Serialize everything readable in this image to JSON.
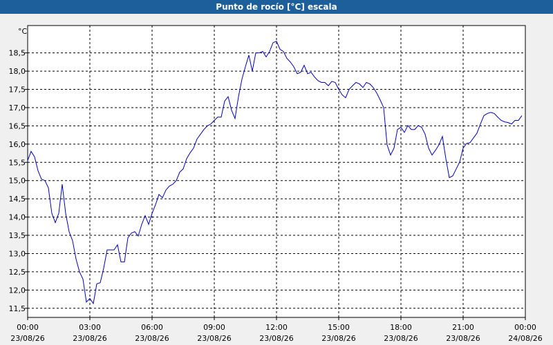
{
  "chart_data": {
    "type": "line",
    "title": "Punto de rocío [°C] escala",
    "y_unit": "°C",
    "xlim": [
      0,
      1440
    ],
    "ylim": [
      11.25,
      19.25
    ],
    "grid": true,
    "color": "#0000c0",
    "xticks": [
      {
        "value": 0,
        "label": "00:00"
      },
      {
        "value": 180,
        "label": "03:00"
      },
      {
        "value": 360,
        "label": "06:00"
      },
      {
        "value": 540,
        "label": "09:00"
      },
      {
        "value": 720,
        "label": "12:00"
      },
      {
        "value": 900,
        "label": "15:00"
      },
      {
        "value": 1080,
        "label": "18:00"
      },
      {
        "value": 1260,
        "label": "21:00"
      },
      {
        "value": 1440,
        "label": "00:00"
      }
    ],
    "xtick_dates": [
      "23/08/26",
      "23/08/26",
      "23/08/26",
      "23/08/26",
      "23/08/26",
      "23/08/26",
      "23/08/26",
      "23/08/26",
      "24/08/26"
    ],
    "yticks": [
      {
        "value": 11.5,
        "label": "11,5"
      },
      {
        "value": 12,
        "label": "12,0"
      },
      {
        "value": 12.5,
        "label": "12,5"
      },
      {
        "value": 13,
        "label": "13,0"
      },
      {
        "value": 13.5,
        "label": "13,5"
      },
      {
        "value": 14,
        "label": "14,0"
      },
      {
        "value": 14.5,
        "label": "14,5"
      },
      {
        "value": 15,
        "label": "15,0"
      },
      {
        "value": 15.5,
        "label": "15,5"
      },
      {
        "value": 16,
        "label": "16,0"
      },
      {
        "value": 16.5,
        "label": "16,5"
      },
      {
        "value": 17,
        "label": "17,0"
      },
      {
        "value": 17.5,
        "label": "17,5"
      },
      {
        "value": 18,
        "label": "18,0"
      },
      {
        "value": 18.5,
        "label": "18,5"
      }
    ],
    "x": [
      0,
      10,
      20,
      30,
      40,
      50,
      60,
      70,
      80,
      90,
      100,
      110,
      120,
      130,
      140,
      150,
      160,
      170,
      180,
      190,
      200,
      210,
      220,
      230,
      240,
      250,
      260,
      270,
      280,
      290,
      300,
      310,
      320,
      330,
      340,
      350,
      360,
      370,
      380,
      390,
      400,
      410,
      420,
      430,
      440,
      450,
      460,
      470,
      480,
      490,
      500,
      510,
      520,
      530,
      540,
      550,
      560,
      570,
      580,
      590,
      600,
      610,
      620,
      630,
      640,
      650,
      660,
      670,
      680,
      690,
      700,
      710,
      720,
      730,
      740,
      750,
      760,
      770,
      780,
      790,
      800,
      810,
      820,
      830,
      840,
      850,
      860,
      870,
      880,
      890,
      900,
      910,
      920,
      930,
      940,
      950,
      960,
      970,
      980,
      990,
      1000,
      1010,
      1020,
      1030,
      1040,
      1050,
      1060,
      1070,
      1080,
      1090,
      1100,
      1110,
      1120,
      1130,
      1140,
      1150,
      1160,
      1170,
      1180,
      1190,
      1200,
      1210,
      1220,
      1230,
      1240,
      1250,
      1260,
      1270,
      1280,
      1290,
      1300,
      1310,
      1320,
      1330,
      1340,
      1350,
      1360,
      1370,
      1380,
      1390,
      1400,
      1410,
      1420,
      1430
    ],
    "values": [
      15.55,
      15.8,
      15.65,
      15.27,
      15.04,
      15.0,
      14.8,
      14.1,
      13.85,
      14.1,
      14.9,
      14.1,
      13.6,
      13.35,
      12.85,
      12.5,
      12.3,
      11.67,
      11.77,
      11.63,
      12.17,
      12.2,
      12.6,
      13.1,
      13.1,
      13.1,
      13.24,
      12.77,
      12.77,
      13.43,
      13.56,
      13.6,
      13.48,
      13.8,
      14.04,
      13.8,
      14.1,
      14.34,
      14.62,
      14.53,
      14.74,
      14.85,
      14.9,
      15.0,
      15.23,
      15.32,
      15.6,
      15.76,
      15.89,
      16.14,
      16.27,
      16.4,
      16.5,
      16.55,
      16.65,
      16.74,
      16.74,
      17.18,
      17.3,
      16.93,
      16.7,
      17.3,
      17.78,
      18.12,
      18.44,
      18.0,
      18.5,
      18.5,
      18.54,
      18.39,
      18.54,
      18.78,
      18.82,
      18.6,
      18.54,
      18.35,
      18.25,
      18.12,
      17.93,
      17.97,
      18.16,
      17.93,
      17.97,
      17.84,
      17.74,
      17.69,
      17.69,
      17.6,
      17.72,
      17.69,
      17.5,
      17.35,
      17.27,
      17.5,
      17.6,
      17.69,
      17.65,
      17.55,
      17.69,
      17.65,
      17.55,
      17.4,
      17.21,
      17.0,
      15.98,
      15.7,
      15.89,
      16.4,
      16.46,
      16.32,
      16.51,
      16.4,
      16.4,
      16.51,
      16.46,
      16.27,
      15.89,
      15.7,
      15.83,
      15.98,
      16.21,
      15.6,
      15.08,
      15.13,
      15.32,
      15.51,
      15.89,
      16.02,
      16.04,
      16.17,
      16.3,
      16.55,
      16.78,
      16.84,
      16.87,
      16.84,
      16.74,
      16.65,
      16.61,
      16.59,
      16.55,
      16.65,
      16.65,
      16.78
    ]
  }
}
